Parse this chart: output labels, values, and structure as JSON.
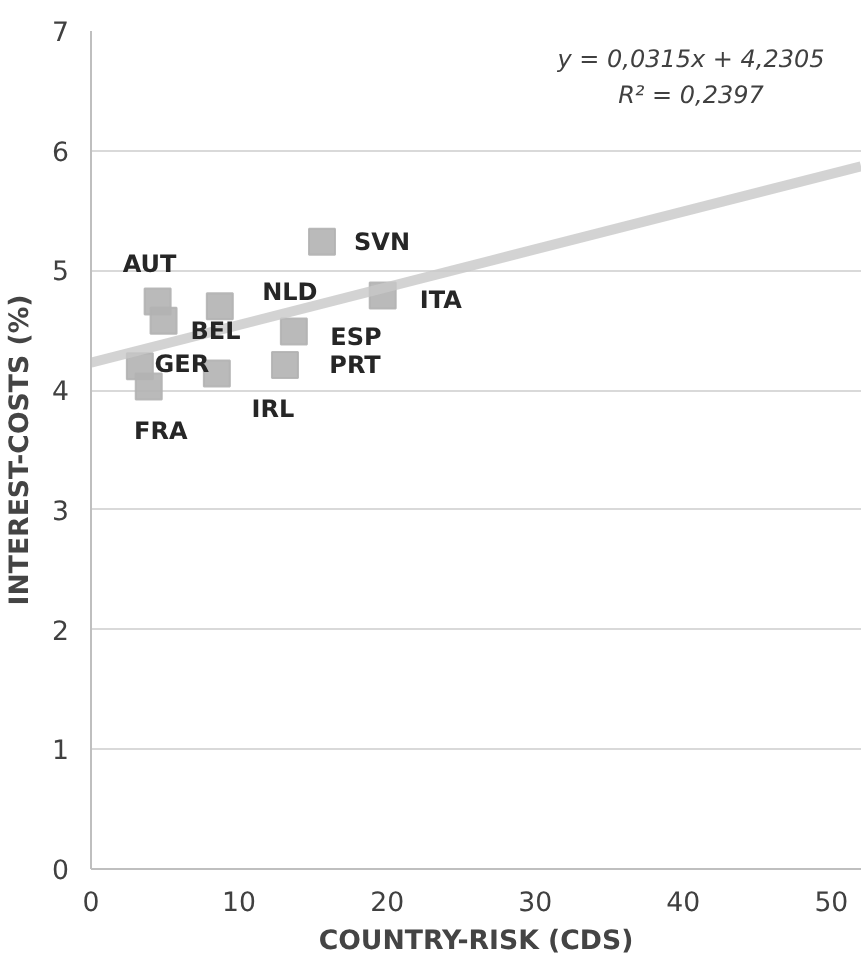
{
  "chart_data": {
    "type": "scatter",
    "xlabel": "COUNTRY-RISK (CDS)",
    "ylabel": "INTEREST-COSTS (%)",
    "series": [
      {
        "color": "#b3b3b3",
        "marker": "square",
        "x": [
          15.6,
          4.5,
          4.9,
          8.7,
          19.7,
          13.7,
          13.1,
          3.3,
          3.9,
          8.5
        ],
        "values": [
          5.24,
          4.74,
          4.58,
          4.7,
          4.79,
          4.49,
          4.21,
          4.2,
          4.03,
          4.14
        ]
      },
      {
        "type": "line",
        "color": "#c8c8c8",
        "marker": "none",
        "x": [
          0,
          52
        ],
        "values": [
          4.23,
          5.87
        ]
      }
    ],
    "annotations": [
      {
        "text": "SVN",
        "x": 15.6,
        "y": 5.24
      },
      {
        "text": "AUT",
        "x": 4.5,
        "y": 4.74
      },
      {
        "text": "BEL",
        "x": 4.9,
        "y": 4.58
      },
      {
        "text": "NLD",
        "x": 8.7,
        "y": 4.7
      },
      {
        "text": "ITA",
        "x": 19.7,
        "y": 4.79
      },
      {
        "text": "ESP",
        "x": 13.7,
        "y": 4.49
      },
      {
        "text": "PRT",
        "x": 13.1,
        "y": 4.21
      },
      {
        "text": "GER",
        "x": 3.3,
        "y": 4.2
      },
      {
        "text": "FRA",
        "x": 3.9,
        "y": 4.03
      },
      {
        "text": "IRL",
        "x": 8.5,
        "y": 4.14
      },
      "y = 0,0315x + 4,2305",
      "R² = 0,2397"
    ],
    "xlim": [
      0,
      52
    ],
    "ylim": [
      0,
      7
    ],
    "xticks": [
      0,
      10,
      20,
      30,
      40,
      50
    ],
    "yticks": [
      0,
      1,
      2,
      3,
      4,
      5,
      6,
      7
    ],
    "grid": "y"
  }
}
